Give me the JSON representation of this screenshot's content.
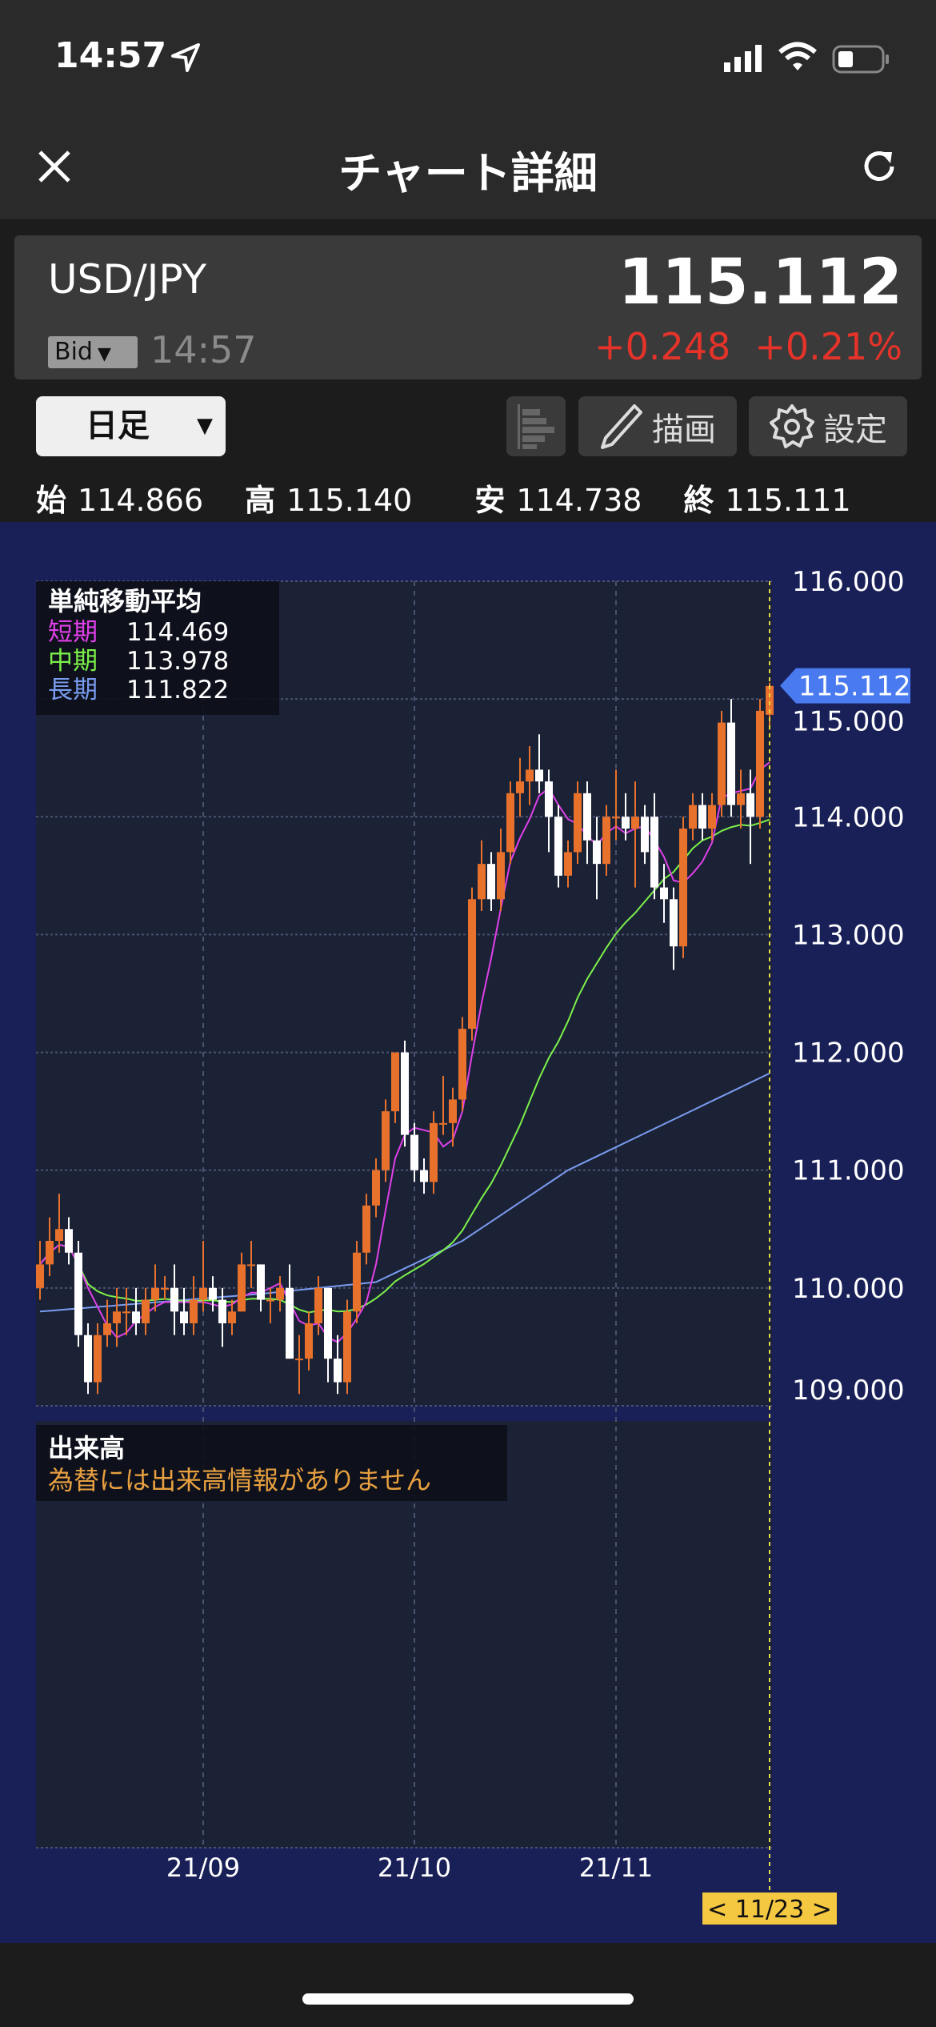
{
  "status_bar": {
    "time": "14:57",
    "icons": [
      "location-arrow-icon",
      "signal-icon",
      "wifi-icon",
      "battery-icon"
    ]
  },
  "header": {
    "title": "チャート詳細",
    "close_icon": "close-icon",
    "refresh_icon": "refresh-icon"
  },
  "quote": {
    "symbol": "USD/JPY",
    "price": "115.112",
    "price_type": "Bid",
    "time": "14:57",
    "change": "+0.248",
    "change_pct": "+0.21%",
    "change_color": "#e5332a"
  },
  "toolbar": {
    "period": "日足",
    "draw_label": "描画",
    "settings_label": "設定"
  },
  "ohlc": {
    "open_label": "始",
    "open": "114.866",
    "high_label": "高",
    "high": "115.140",
    "low_label": "安",
    "low": "114.738",
    "close_label": "終",
    "close": "115.111"
  },
  "legend": {
    "title": "単純移動平均",
    "items": [
      {
        "label": "短期",
        "value": "114.469",
        "color": "#e040e8"
      },
      {
        "label": "中期",
        "value": "113.978",
        "color": "#7cf04a"
      },
      {
        "label": "長期",
        "value": "111.822",
        "color": "#7a9cf0"
      }
    ]
  },
  "volume": {
    "title": "出来高",
    "message": "為替には出来高情報がありません"
  },
  "date_tag": "< 11/23 >",
  "chart_data": {
    "type": "candlestick",
    "ylim": [
      109,
      116
    ],
    "yticks": [
      "116.000",
      "115.000",
      "114.000",
      "113.000",
      "112.000",
      "111.000",
      "110.000",
      "109.000"
    ],
    "xticks": [
      {
        "label": "21/09",
        "date": "09/01"
      },
      {
        "label": "21/10",
        "date": "10/01"
      },
      {
        "label": "21/11",
        "date": "11/01"
      }
    ],
    "last_price": "115.112",
    "up_color": "#e8722c",
    "down_color": "#ffffff",
    "candles": [
      [
        "08/09",
        110.0,
        110.4,
        109.9,
        110.2
      ],
      [
        "08/10",
        110.2,
        110.6,
        110.1,
        110.4
      ],
      [
        "08/11",
        110.4,
        110.8,
        110.3,
        110.5
      ],
      [
        "08/12",
        110.5,
        110.6,
        110.2,
        110.3
      ],
      [
        "08/13",
        110.3,
        110.4,
        109.5,
        109.6
      ],
      [
        "08/16",
        109.6,
        109.7,
        109.1,
        109.2
      ],
      [
        "08/17",
        109.2,
        109.7,
        109.1,
        109.6
      ],
      [
        "08/18",
        109.6,
        109.9,
        109.5,
        109.7
      ],
      [
        "08/19",
        109.7,
        110.0,
        109.5,
        109.8
      ],
      [
        "08/20",
        109.8,
        110.0,
        109.6,
        109.8
      ],
      [
        "08/23",
        109.8,
        110.0,
        109.6,
        109.7
      ],
      [
        "08/24",
        109.7,
        110.0,
        109.6,
        109.9
      ],
      [
        "08/25",
        109.9,
        110.2,
        109.8,
        110.0
      ],
      [
        "08/26",
        110.0,
        110.1,
        109.9,
        110.0
      ],
      [
        "08/27",
        110.0,
        110.2,
        109.6,
        109.8
      ],
      [
        "08/30",
        109.8,
        110.0,
        109.6,
        109.7
      ],
      [
        "08/31",
        109.7,
        110.1,
        109.6,
        109.9
      ],
      [
        "09/01",
        109.9,
        110.4,
        109.8,
        110.0
      ],
      [
        "09/02",
        110.0,
        110.1,
        109.8,
        109.9
      ],
      [
        "09/03",
        109.9,
        110.0,
        109.5,
        109.7
      ],
      [
        "09/06",
        109.7,
        109.9,
        109.6,
        109.8
      ],
      [
        "09/07",
        109.8,
        110.3,
        109.8,
        110.2
      ],
      [
        "09/08",
        110.2,
        110.4,
        110.0,
        110.2
      ],
      [
        "09/09",
        110.2,
        110.2,
        109.8,
        109.9
      ],
      [
        "09/10",
        109.9,
        110.0,
        109.7,
        109.9
      ],
      [
        "09/13",
        109.9,
        110.1,
        109.8,
        110.0
      ],
      [
        "09/14",
        110.0,
        110.2,
        109.4,
        109.4
      ],
      [
        "09/15",
        109.4,
        109.6,
        109.1,
        109.4
      ],
      [
        "09/16",
        109.4,
        109.8,
        109.3,
        109.7
      ],
      [
        "09/17",
        109.7,
        110.1,
        109.6,
        110.0
      ],
      [
        "09/20",
        110.0,
        110.0,
        109.2,
        109.4
      ],
      [
        "09/21",
        109.4,
        109.6,
        109.1,
        109.2
      ],
      [
        "09/22",
        109.2,
        109.9,
        109.1,
        109.8
      ],
      [
        "09/23",
        109.8,
        110.4,
        109.7,
        110.3
      ],
      [
        "09/24",
        110.3,
        110.8,
        110.2,
        110.7
      ],
      [
        "09/27",
        110.7,
        111.1,
        110.6,
        111.0
      ],
      [
        "09/28",
        111.0,
        111.6,
        110.9,
        111.5
      ],
      [
        "09/29",
        111.5,
        112.0,
        111.4,
        112.0
      ],
      [
        "09/30",
        112.0,
        112.1,
        111.2,
        111.3
      ],
      [
        "10/01",
        111.3,
        111.4,
        110.9,
        111.0
      ],
      [
        "10/04",
        111.0,
        111.1,
        110.8,
        110.9
      ],
      [
        "10/05",
        110.9,
        111.5,
        110.8,
        111.4
      ],
      [
        "10/06",
        111.4,
        111.8,
        111.3,
        111.4
      ],
      [
        "10/07",
        111.4,
        111.7,
        111.2,
        111.6
      ],
      [
        "10/08",
        111.6,
        112.3,
        111.5,
        112.2
      ],
      [
        "10/11",
        112.2,
        113.4,
        112.1,
        113.3
      ],
      [
        "10/12",
        113.3,
        113.8,
        113.2,
        113.6
      ],
      [
        "10/13",
        113.6,
        113.7,
        113.2,
        113.3
      ],
      [
        "10/14",
        113.3,
        113.9,
        113.2,
        113.7
      ],
      [
        "10/15",
        113.7,
        114.3,
        113.6,
        114.2
      ],
      [
        "10/18",
        114.2,
        114.5,
        114.0,
        114.3
      ],
      [
        "10/19",
        114.3,
        114.6,
        114.1,
        114.4
      ],
      [
        "10/20",
        114.4,
        114.7,
        114.2,
        114.3
      ],
      [
        "10/21",
        114.3,
        114.4,
        113.7,
        114.0
      ],
      [
        "10/22",
        114.0,
        114.1,
        113.4,
        113.5
      ],
      [
        "10/25",
        113.5,
        113.8,
        113.4,
        113.7
      ],
      [
        "10/26",
        113.7,
        114.3,
        113.6,
        114.2
      ],
      [
        "10/27",
        114.2,
        114.3,
        113.6,
        113.8
      ],
      [
        "10/28",
        113.8,
        114.0,
        113.3,
        113.6
      ],
      [
        "10/29",
        113.6,
        114.1,
        113.5,
        114.0
      ],
      [
        "11/01",
        114.0,
        114.4,
        113.8,
        114.0
      ],
      [
        "11/02",
        114.0,
        114.2,
        113.8,
        113.9
      ],
      [
        "11/03",
        113.9,
        114.3,
        113.4,
        114.0
      ],
      [
        "11/04",
        114.0,
        114.1,
        113.6,
        113.7
      ],
      [
        "11/05",
        114.0,
        114.2,
        113.3,
        113.4
      ],
      [
        "11/08",
        113.4,
        113.6,
        113.1,
        113.3
      ],
      [
        "11/09",
        113.3,
        113.4,
        112.7,
        112.9
      ],
      [
        "11/10",
        112.9,
        114.0,
        112.8,
        113.9
      ],
      [
        "11/11",
        113.9,
        114.2,
        113.8,
        114.1
      ],
      [
        "11/12",
        114.1,
        114.2,
        113.8,
        113.9
      ],
      [
        "11/15",
        113.9,
        114.2,
        113.8,
        114.1
      ],
      [
        "11/16",
        114.1,
        114.9,
        114.0,
        114.8
      ],
      [
        "11/17",
        114.8,
        115.0,
        114.0,
        114.1
      ],
      [
        "11/18",
        114.1,
        114.4,
        113.9,
        114.2
      ],
      [
        "11/19",
        114.2,
        114.4,
        113.6,
        114.0
      ],
      [
        "11/22",
        114.0,
        115.0,
        113.9,
        114.9
      ],
      [
        "11/23",
        114.866,
        115.14,
        114.738,
        115.111
      ]
    ],
    "ma_long": [
      [
        "08/09",
        109.8
      ],
      [
        "09/09",
        109.95
      ],
      [
        "09/27",
        110.05
      ],
      [
        "10/08",
        110.4
      ],
      [
        "10/25",
        111.0
      ],
      [
        "11/23",
        111.822
      ]
    ]
  }
}
